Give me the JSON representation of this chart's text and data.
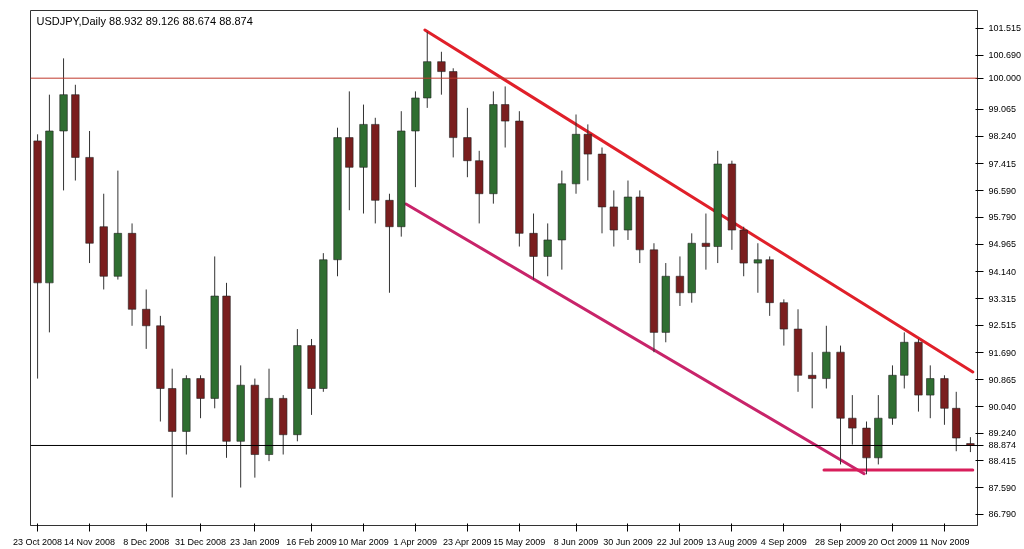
{
  "chart_data": {
    "type": "candlestick",
    "title": "USDJPY,Daily  88.932 89.126 88.674 88.874",
    "x": [
      "2008-10-23",
      "2008-10-28",
      "2008-11-03",
      "2008-11-08",
      "2008-11-14",
      "2008-11-20",
      "2008-11-26",
      "2008-12-02",
      "2008-12-08",
      "2008-12-14",
      "2008-12-19",
      "2008-12-25",
      "2008-12-31",
      "2009-01-06",
      "2009-01-11",
      "2009-01-17",
      "2009-01-23",
      "2009-01-29",
      "2009-02-04",
      "2009-02-10",
      "2009-02-16",
      "2009-02-21",
      "2009-02-27",
      "2009-03-04",
      "2009-03-10",
      "2009-03-15",
      "2009-03-21",
      "2009-03-26",
      "2009-04-01",
      "2009-04-06",
      "2009-04-12",
      "2009-04-17",
      "2009-04-23",
      "2009-04-28",
      "2009-05-04",
      "2009-05-09",
      "2009-05-15",
      "2009-05-21",
      "2009-05-27",
      "2009-06-02",
      "2009-06-08",
      "2009-06-13",
      "2009-06-19",
      "2009-06-24",
      "2009-06-30",
      "2009-07-05",
      "2009-07-11",
      "2009-07-16",
      "2009-07-22",
      "2009-07-27",
      "2009-08-02",
      "2009-08-07",
      "2009-08-13",
      "2009-08-18",
      "2009-08-24",
      "2009-08-29",
      "2009-09-04",
      "2009-09-10",
      "2009-09-16",
      "2009-09-22",
      "2009-09-28",
      "2009-10-03",
      "2009-10-09",
      "2009-10-14",
      "2009-10-20",
      "2009-10-25",
      "2009-10-31",
      "2009-11-05",
      "2009-11-11",
      "2009-11-16",
      "2009-11-22"
    ],
    "ohlc": [
      [
        98.1,
        98.3,
        90.9,
        93.8
      ],
      [
        93.8,
        99.5,
        92.3,
        98.4
      ],
      [
        98.4,
        100.6,
        96.6,
        99.5
      ],
      [
        99.5,
        99.8,
        96.9,
        97.6
      ],
      [
        97.6,
        98.4,
        94.4,
        95.0
      ],
      [
        95.5,
        96.5,
        93.6,
        94.0
      ],
      [
        94.0,
        97.2,
        93.9,
        95.3
      ],
      [
        95.3,
        95.6,
        92.5,
        93.0
      ],
      [
        93.0,
        93.6,
        91.8,
        92.5
      ],
      [
        92.5,
        92.8,
        89.6,
        90.6
      ],
      [
        90.6,
        91.2,
        87.3,
        89.3
      ],
      [
        89.3,
        91.0,
        88.6,
        90.9
      ],
      [
        90.9,
        91.0,
        89.7,
        90.3
      ],
      [
        90.3,
        94.6,
        90.0,
        93.4
      ],
      [
        93.4,
        93.8,
        88.5,
        89.0
      ],
      [
        89.0,
        91.3,
        87.6,
        90.7
      ],
      [
        90.7,
        90.9,
        87.9,
        88.6
      ],
      [
        88.6,
        91.2,
        88.4,
        90.3
      ],
      [
        90.3,
        90.4,
        88.6,
        89.2
      ],
      [
        89.2,
        92.4,
        89.0,
        91.9
      ],
      [
        91.9,
        92.1,
        89.8,
        90.6
      ],
      [
        90.6,
        94.7,
        90.5,
        94.5
      ],
      [
        94.5,
        98.5,
        94.0,
        98.2
      ],
      [
        98.2,
        99.6,
        96.0,
        97.3
      ],
      [
        97.3,
        99.2,
        95.9,
        98.6
      ],
      [
        98.6,
        98.8,
        95.6,
        96.3
      ],
      [
        96.3,
        96.5,
        93.5,
        95.5
      ],
      [
        95.5,
        99.0,
        95.2,
        98.4
      ],
      [
        98.4,
        99.6,
        96.7,
        99.4
      ],
      [
        99.4,
        101.4,
        99.1,
        100.5
      ],
      [
        100.5,
        100.8,
        99.5,
        100.2
      ],
      [
        100.2,
        100.3,
        97.6,
        98.2
      ],
      [
        98.2,
        99.1,
        97.0,
        97.5
      ],
      [
        97.5,
        97.8,
        95.6,
        96.5
      ],
      [
        96.5,
        99.6,
        96.2,
        99.2
      ],
      [
        99.2,
        99.75,
        97.9,
        98.7
      ],
      [
        98.7,
        99.0,
        94.9,
        95.3
      ],
      [
        95.3,
        95.9,
        93.9,
        94.6
      ],
      [
        94.6,
        95.6,
        94.0,
        95.1
      ],
      [
        95.1,
        97.2,
        94.2,
        96.8
      ],
      [
        96.8,
        98.9,
        96.5,
        98.3
      ],
      [
        98.3,
        98.6,
        96.9,
        97.7
      ],
      [
        97.7,
        97.9,
        95.3,
        96.1
      ],
      [
        96.1,
        96.6,
        94.9,
        95.4
      ],
      [
        95.4,
        96.9,
        95.1,
        96.4
      ],
      [
        96.4,
        96.6,
        94.4,
        94.8
      ],
      [
        94.8,
        95.0,
        91.7,
        92.3
      ],
      [
        92.3,
        94.4,
        92.0,
        94.0
      ],
      [
        94.0,
        94.6,
        93.1,
        93.5
      ],
      [
        93.5,
        95.3,
        93.2,
        95.0
      ],
      [
        95.0,
        95.9,
        94.2,
        94.9
      ],
      [
        94.9,
        97.8,
        94.4,
        97.4
      ],
      [
        97.4,
        97.5,
        94.8,
        95.4
      ],
      [
        95.4,
        95.5,
        94.0,
        94.4
      ],
      [
        94.4,
        95.0,
        93.5,
        94.5
      ],
      [
        94.5,
        94.6,
        92.8,
        93.2
      ],
      [
        93.2,
        93.3,
        91.9,
        92.4
      ],
      [
        92.4,
        93.0,
        90.5,
        91.0
      ],
      [
        91.0,
        91.7,
        90.0,
        90.9
      ],
      [
        90.9,
        92.5,
        90.6,
        91.7
      ],
      [
        91.7,
        91.9,
        88.3,
        89.7
      ],
      [
        89.7,
        90.4,
        88.9,
        89.4
      ],
      [
        89.4,
        89.6,
        88.0,
        88.5
      ],
      [
        88.5,
        90.4,
        88.3,
        89.7
      ],
      [
        89.7,
        91.3,
        89.5,
        91.0
      ],
      [
        91.0,
        92.3,
        90.6,
        92.0
      ],
      [
        92.0,
        92.1,
        89.9,
        90.4
      ],
      [
        90.4,
        91.3,
        89.7,
        90.9
      ],
      [
        90.9,
        91.0,
        89.5,
        90.0
      ],
      [
        90.0,
        90.5,
        88.7,
        89.1
      ],
      [
        88.932,
        89.126,
        88.674,
        88.874
      ]
    ],
    "colors": [
      "#7a1e1e",
      "#2f6e31",
      "#2f6e31",
      "#7a1e1e",
      "#7a1e1e",
      "#7a1e1e",
      "#2f6e31",
      "#7a1e1e",
      "#7a1e1e",
      "#7a1e1e",
      "#7a1e1e",
      "#2f6e31",
      "#7a1e1e",
      "#2f6e31",
      "#7a1e1e",
      "#2f6e31",
      "#7a1e1e",
      "#2f6e31",
      "#7a1e1e",
      "#2f6e31",
      "#7a1e1e",
      "#2f6e31",
      "#2f6e31",
      "#7a1e1e",
      "#2f6e31",
      "#7a1e1e",
      "#7a1e1e",
      "#2f6e31",
      "#2f6e31",
      "#2f6e31",
      "#7a1e1e",
      "#7a1e1e",
      "#7a1e1e",
      "#7a1e1e",
      "#2f6e31",
      "#7a1e1e",
      "#7a1e1e",
      "#7a1e1e",
      "#2f6e31",
      "#2f6e31",
      "#2f6e31",
      "#7a1e1e",
      "#7a1e1e",
      "#7a1e1e",
      "#2f6e31",
      "#7a1e1e",
      "#7a1e1e",
      "#2f6e31",
      "#7a1e1e",
      "#2f6e31",
      "#7a1e1e",
      "#2f6e31",
      "#7a1e1e",
      "#7a1e1e",
      "#2f6e31",
      "#7a1e1e",
      "#7a1e1e",
      "#7a1e1e",
      "#7a1e1e",
      "#2f6e31",
      "#7a1e1e",
      "#7a1e1e",
      "#7a1e1e",
      "#2f6e31",
      "#2f6e31",
      "#2f6e31",
      "#7a1e1e",
      "#2f6e31",
      "#7a1e1e",
      "#7a1e1e",
      "#7a1e1e"
    ],
    "series": [
      {
        "type": "line",
        "color": "#e0202a",
        "x": [
          "2009-04-05",
          "2009-11-23"
        ],
        "values": [
          101.46,
          91.1
        ]
      },
      {
        "type": "line",
        "color": "#c8246a",
        "x": [
          "2009-03-28",
          "2009-10-08"
        ],
        "values": [
          96.19,
          88.02
        ]
      },
      {
        "type": "line",
        "color": "#d81e5b",
        "x": [
          "2009-09-21",
          "2009-11-23"
        ],
        "values": [
          88.13,
          88.13
        ]
      }
    ],
    "ref_lines": [
      {
        "axis": "y",
        "value": 100.0,
        "label": "100.000",
        "color": "#c0392b"
      },
      {
        "axis": "y",
        "value": 88.874,
        "label": "88.874",
        "color": "#000000"
      }
    ],
    "xlim": [
      "2008-10-20",
      "2009-11-25"
    ],
    "xticks": [
      {
        "value": "2008-10-23",
        "label": "23 Oct 2008"
      },
      {
        "value": "2008-11-14",
        "label": "14 Nov 2008"
      },
      {
        "value": "2008-12-08",
        "label": "8 Dec 2008"
      },
      {
        "value": "2008-12-31",
        "label": "31 Dec 2008"
      },
      {
        "value": "2009-01-23",
        "label": "23 Jan 2009"
      },
      {
        "value": "2009-02-16",
        "label": "16 Feb 2009"
      },
      {
        "value": "2009-03-10",
        "label": "10 Mar 2009"
      },
      {
        "value": "2009-04-01",
        "label": "1 Apr 2009"
      },
      {
        "value": "2009-04-23",
        "label": "23 Apr 2009"
      },
      {
        "value": "2009-05-15",
        "label": "15 May 2009"
      },
      {
        "value": "2009-06-08",
        "label": "8 Jun 2009"
      },
      {
        "value": "2009-06-30",
        "label": "30 Jun 2009"
      },
      {
        "value": "2009-07-22",
        "label": "22 Jul 2009"
      },
      {
        "value": "2009-08-13",
        "label": "13 Aug 2009"
      },
      {
        "value": "2009-09-04",
        "label": "4 Sep 2009"
      },
      {
        "value": "2009-09-28",
        "label": "28 Sep 2009"
      },
      {
        "value": "2009-10-20",
        "label": "20 Oct 2009"
      },
      {
        "value": "2009-11-11",
        "label": "11 Nov 2009"
      }
    ],
    "ylim": [
      86.45,
      102.05
    ],
    "yticks": [
      {
        "value": 86.79,
        "label": "86.790"
      },
      {
        "value": 87.59,
        "label": "87.590"
      },
      88.415,
      {
        "value": 89.24,
        "label": "89.240"
      },
      {
        "value": 90.04,
        "label": "90.040"
      },
      90.865,
      {
        "value": 91.69,
        "label": "91.690"
      },
      92.515,
      93.315,
      {
        "value": 94.14,
        "label": "94.140"
      },
      94.965,
      {
        "value": 95.79,
        "label": "95.790"
      },
      {
        "value": 96.59,
        "label": "96.590"
      },
      97.415,
      {
        "value": 98.24,
        "label": "98.240"
      },
      99.065,
      {
        "value": 100.69,
        "label": "100.690"
      },
      101.515
    ],
    "grid": false
  }
}
